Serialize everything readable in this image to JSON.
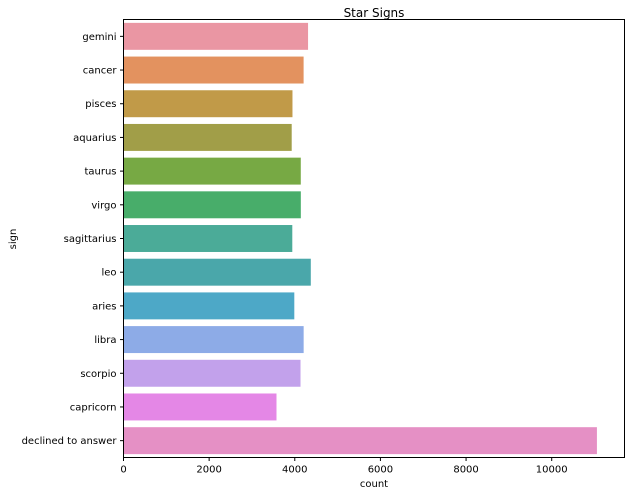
{
  "chart_data": {
    "type": "bar",
    "orientation": "horizontal",
    "title": "Star Signs",
    "xlabel": "count",
    "ylabel": "sign",
    "xlim": [
      0,
      11700
    ],
    "xticks": [
      0,
      2000,
      4000,
      6000,
      8000,
      10000
    ],
    "grid": false,
    "legend": "none",
    "categories": [
      "gemini",
      "cancer",
      "pisces",
      "aquarius",
      "taurus",
      "virgo",
      "sagittarius",
      "leo",
      "aries",
      "libra",
      "scorpio",
      "capricorn",
      "declined to answer"
    ],
    "values": [
      4310,
      4206,
      3946,
      3928,
      4140,
      4141,
      3942,
      4374,
      3989,
      4207,
      4134,
      3573,
      11056
    ],
    "colors": [
      "#ea96a3",
      "#e3925f",
      "#c19a48",
      "#a19e48",
      "#77a944",
      "#48ad6a",
      "#4bab98",
      "#4aa7aa",
      "#4da8c7",
      "#8dabe7",
      "#c2a1eb",
      "#e487e6",
      "#e590c5"
    ]
  }
}
